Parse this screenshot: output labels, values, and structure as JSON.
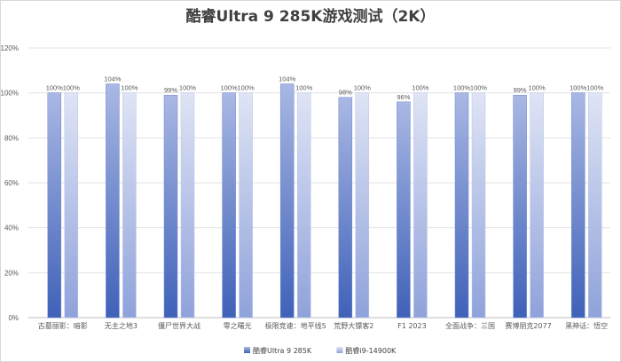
{
  "chart_data": {
    "type": "bar",
    "title": "酷睿Ultra 9 285K游戏测试（2K）",
    "categories": [
      "古墓丽影：暗影",
      "无主之地3",
      "僵尸世界大战",
      "零之曙光",
      "极限竞速：地平线5",
      "荒野大镖客2",
      "F1 2023",
      "全面战争：三国",
      "赛博朋克2077",
      "黑神话：悟空"
    ],
    "series": [
      {
        "name": "酷睿Ultra 9 285K",
        "values": [
          100,
          104,
          99,
          100,
          104,
          98,
          96,
          100,
          99,
          100
        ],
        "color_top": "#a9b8e4",
        "color_bottom": "#3f61b8"
      },
      {
        "name": "酷睿i9-14900K",
        "values": [
          100,
          100,
          100,
          100,
          100,
          100,
          100,
          100,
          100,
          100
        ],
        "color_top": "#dfe4f5",
        "color_bottom": "#8fa2da"
      }
    ],
    "data_labels": [
      [
        "100%",
        "104%",
        "99%",
        "100%",
        "104%",
        "98%",
        "96%",
        "100%",
        "99%",
        "100%"
      ],
      [
        "100%",
        "100%",
        "100%",
        "100%",
        "100%",
        "100%",
        "100%",
        "100%",
        "100%",
        "100%"
      ]
    ],
    "ylim": [
      0,
      120
    ],
    "yticks": [
      0,
      20,
      40,
      60,
      80,
      100,
      120
    ],
    "ytick_labels": [
      "0%",
      "20%",
      "40%",
      "60%",
      "80%",
      "100%",
      "120%"
    ],
    "xlabel": "",
    "ylabel": "",
    "grid": true,
    "legend_position": "bottom-center"
  }
}
